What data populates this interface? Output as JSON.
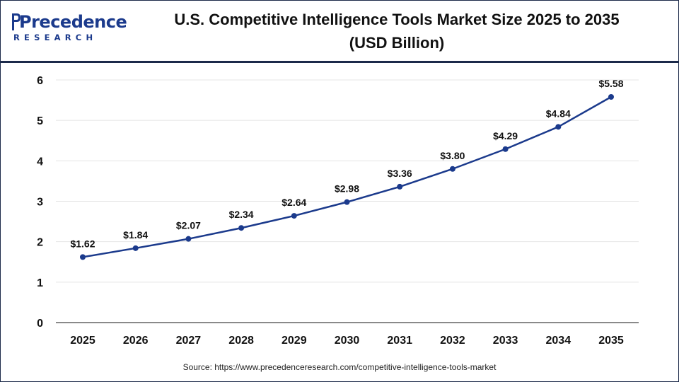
{
  "brand": {
    "name": "Precedence",
    "sub": "RESEARCH"
  },
  "header": {
    "title_line1": "U.S. Competitive Intelligence Tools Market Size 2025 to 2035",
    "title_line2": "(USD Billion)"
  },
  "footer": {
    "source": "Source: https://www.precedenceresearch.com/competitive-intelligence-tools-market"
  },
  "colors": {
    "line": "#1b3a8c",
    "marker": "#1b3a8c",
    "grid": "#e4e4e4",
    "axis": "#444444",
    "text": "#111111"
  },
  "chart_data": {
    "type": "line",
    "title": "U.S. Competitive Intelligence Tools Market Size 2025 to 2035 (USD Billion)",
    "xlabel": "",
    "ylabel": "",
    "categories": [
      "2025",
      "2026",
      "2027",
      "2028",
      "2029",
      "2030",
      "2031",
      "2032",
      "2033",
      "2034",
      "2035"
    ],
    "values": [
      1.62,
      1.84,
      2.07,
      2.34,
      2.64,
      2.98,
      3.36,
      3.8,
      4.29,
      4.84,
      5.58
    ],
    "data_labels": [
      "$1.62",
      "$1.84",
      "$2.07",
      "$2.34",
      "$2.64",
      "$2.98",
      "$3.36",
      "$3.80",
      "$4.29",
      "$4.84",
      "$5.58"
    ],
    "ylim": [
      0,
      6
    ],
    "yticks": [
      0,
      1,
      2,
      3,
      4,
      5,
      6
    ],
    "grid": true,
    "legend": "none"
  }
}
